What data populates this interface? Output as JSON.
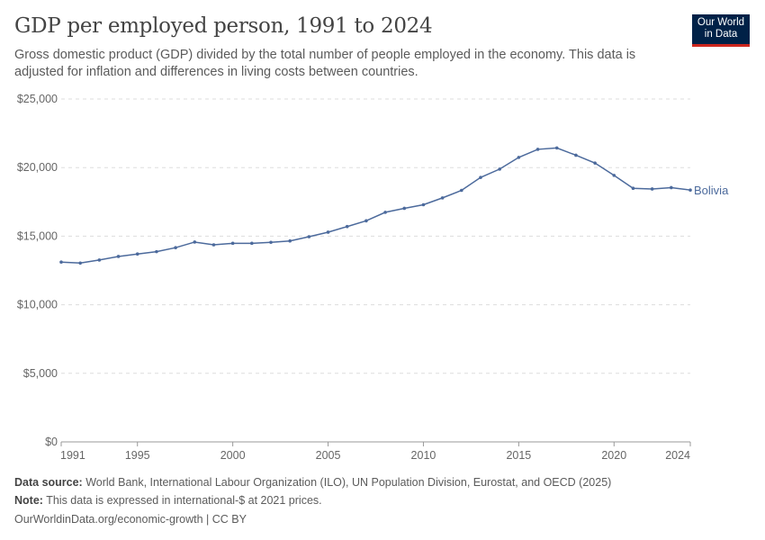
{
  "header": {
    "title": "GDP per employed person, 1991 to 2024",
    "subtitle": "Gross domestic product (GDP) divided by the total number of people employed in the economy. This data is adjusted for inflation and differences in living costs between countries.",
    "logo": "Our World in Data"
  },
  "chart_data": {
    "type": "line",
    "title": "GDP per employed person, 1991 to 2024",
    "ylim": [
      0,
      25000
    ],
    "xlim": [
      1991,
      2024
    ],
    "yticks": [
      "$0",
      "$5,000",
      "$10,000",
      "$15,000",
      "$20,000",
      "$25,000"
    ],
    "ytick_values": [
      0,
      5000,
      10000,
      15000,
      20000,
      25000
    ],
    "xticks": [
      "1991",
      "1995",
      "2000",
      "2005",
      "2010",
      "2015",
      "2020",
      "2024"
    ],
    "xtick_values": [
      1991,
      1995,
      2000,
      2005,
      2010,
      2015,
      2020,
      2024
    ],
    "grid": "horizontal dashed",
    "legend": "end-of-line label",
    "series": [
      {
        "name": "Bolivia",
        "color": "#4c6a9c",
        "x": [
          1991,
          1992,
          1993,
          1994,
          1995,
          1996,
          1997,
          1998,
          1999,
          2000,
          2001,
          2002,
          2003,
          2004,
          2005,
          2006,
          2007,
          2008,
          2009,
          2010,
          2011,
          2012,
          2013,
          2014,
          2015,
          2016,
          2017,
          2018,
          2019,
          2020,
          2021,
          2022,
          2023,
          2024
        ],
        "values": [
          13110,
          13040,
          13260,
          13520,
          13700,
          13870,
          14160,
          14570,
          14370,
          14480,
          14480,
          14550,
          14650,
          14960,
          15290,
          15700,
          16120,
          16740,
          17030,
          17290,
          17790,
          18340,
          19280,
          19890,
          20740,
          21330,
          21430,
          20900,
          20330,
          19430,
          18490,
          18440,
          18540,
          18360
        ]
      }
    ]
  },
  "footer": {
    "source_label": "Data source:",
    "source": "World Bank, International Labour Organization (ILO), UN Population Division, Eurostat, and OECD (2025)",
    "note_label": "Note:",
    "note": "This data is expressed in international-$ at 2021 prices.",
    "link": "OurWorldinData.org/economic-growth | CC BY"
  }
}
